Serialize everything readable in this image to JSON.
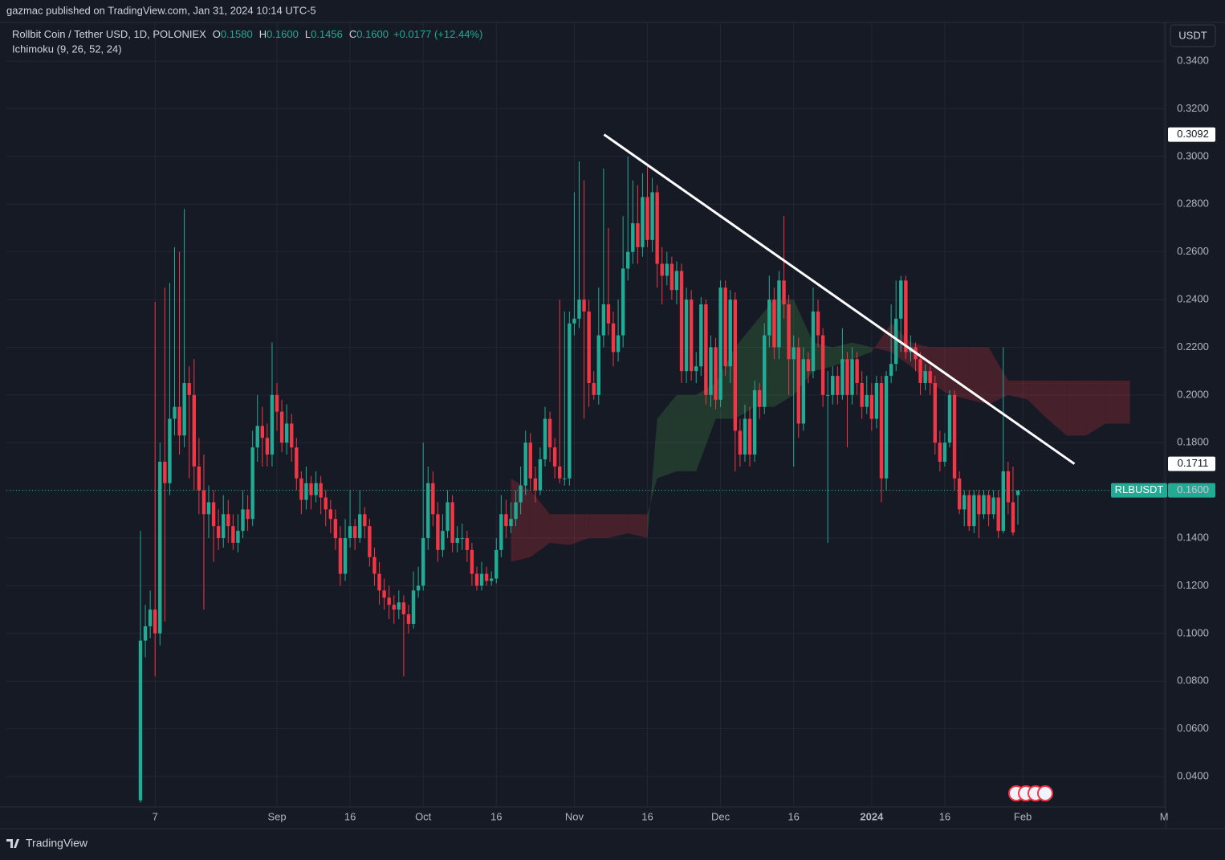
{
  "chart_data": {
    "type": "candlestick",
    "byline": "gazmac published on TradingView.com, Jan 31, 2024 10:14 UTC-5",
    "title": "Rollbit Coin / Tether USD, 1D, POLONIEX",
    "ohlc_legend": [
      {
        "key": "O",
        "text": "0.1580"
      },
      {
        "key": "H",
        "text": "0.1600"
      },
      {
        "key": "L",
        "text": "0.1456"
      },
      {
        "key": "C",
        "text": "0.1600"
      }
    ],
    "change": "+0.0177 (+12.44%)",
    "indicator": "Ichimoku (9, 26, 52, 24)",
    "currency": "USDT",
    "brand": "TradingView",
    "up_color": "#22ab94",
    "down_color": "#f23645",
    "grid": true,
    "xlim": [
      -27.5,
      210.3
    ],
    "ylim": [
      0.0272,
      0.3562
    ],
    "xticks": [
      {
        "value": 3,
        "label": "7"
      },
      {
        "value": 28,
        "label": "Sep"
      },
      {
        "value": 43,
        "label": "16"
      },
      {
        "value": 58,
        "label": "Oct"
      },
      {
        "value": 73,
        "label": "16"
      },
      {
        "value": 89,
        "label": "Nov"
      },
      {
        "value": 104,
        "label": "16"
      },
      {
        "value": 119,
        "label": "Dec"
      },
      {
        "value": 134,
        "label": "16"
      },
      {
        "value": 150,
        "label": "2024"
      },
      {
        "value": 165,
        "label": "16"
      },
      {
        "value": 181,
        "label": "Feb"
      },
      {
        "value": 210,
        "label": "M"
      }
    ],
    "yticks": [
      {
        "value": 0.04,
        "label": "0.0400"
      },
      {
        "value": 0.06,
        "label": "0.0600"
      },
      {
        "value": 0.08,
        "label": "0.0800"
      },
      {
        "value": 0.1,
        "label": "0.1000"
      },
      {
        "value": 0.12,
        "label": "0.1200"
      },
      {
        "value": 0.14,
        "label": "0.1400"
      },
      {
        "value": 0.16,
        "label": "0.1600"
      },
      {
        "value": 0.18,
        "label": "0.1800"
      },
      {
        "value": 0.2,
        "label": "0.2000"
      },
      {
        "value": 0.22,
        "label": "0.2200"
      },
      {
        "value": 0.24,
        "label": "0.2400"
      },
      {
        "value": 0.26,
        "label": "0.2600"
      },
      {
        "value": 0.28,
        "label": "0.2800"
      },
      {
        "value": 0.3,
        "label": "0.3000"
      },
      {
        "value": 0.32,
        "label": "0.3200"
      },
      {
        "value": 0.34,
        "label": "0.3400"
      }
    ],
    "ohlc": [
      [
        0.03,
        0.143,
        0.029,
        0.097
      ],
      [
        0.097,
        0.112,
        0.09,
        0.103
      ],
      [
        0.103,
        0.118,
        0.098,
        0.11
      ],
      [
        0.11,
        0.239,
        0.082,
        0.1
      ],
      [
        0.1,
        0.18,
        0.095,
        0.172
      ],
      [
        0.172,
        0.245,
        0.105,
        0.163
      ],
      [
        0.163,
        0.247,
        0.158,
        0.19
      ],
      [
        0.19,
        0.262,
        0.183,
        0.195
      ],
      [
        0.195,
        0.26,
        0.175,
        0.183
      ],
      [
        0.183,
        0.278,
        0.178,
        0.205
      ],
      [
        0.205,
        0.212,
        0.165,
        0.2
      ],
      [
        0.2,
        0.215,
        0.16,
        0.17
      ],
      [
        0.17,
        0.182,
        0.15,
        0.16
      ],
      [
        0.16,
        0.175,
        0.11,
        0.15
      ],
      [
        0.15,
        0.162,
        0.14,
        0.155
      ],
      [
        0.155,
        0.16,
        0.13,
        0.145
      ],
      [
        0.145,
        0.152,
        0.135,
        0.14
      ],
      [
        0.14,
        0.158,
        0.136,
        0.15
      ],
      [
        0.15,
        0.156,
        0.138,
        0.145
      ],
      [
        0.145,
        0.15,
        0.135,
        0.138
      ],
      [
        0.138,
        0.15,
        0.134,
        0.143
      ],
      [
        0.143,
        0.16,
        0.14,
        0.152
      ],
      [
        0.152,
        0.158,
        0.143,
        0.148
      ],
      [
        0.148,
        0.185,
        0.145,
        0.178
      ],
      [
        0.178,
        0.2,
        0.172,
        0.187
      ],
      [
        0.187,
        0.195,
        0.17,
        0.182
      ],
      [
        0.182,
        0.188,
        0.17,
        0.175
      ],
      [
        0.175,
        0.222,
        0.17,
        0.2
      ],
      [
        0.2,
        0.205,
        0.185,
        0.193
      ],
      [
        0.193,
        0.198,
        0.176,
        0.18
      ],
      [
        0.18,
        0.196,
        0.175,
        0.188
      ],
      [
        0.188,
        0.192,
        0.172,
        0.178
      ],
      [
        0.178,
        0.182,
        0.16,
        0.165
      ],
      [
        0.165,
        0.168,
        0.15,
        0.156
      ],
      [
        0.156,
        0.17,
        0.152,
        0.163
      ],
      [
        0.163,
        0.166,
        0.152,
        0.158
      ],
      [
        0.158,
        0.168,
        0.155,
        0.163
      ],
      [
        0.163,
        0.166,
        0.15,
        0.157
      ],
      [
        0.157,
        0.16,
        0.145,
        0.152
      ],
      [
        0.152,
        0.156,
        0.142,
        0.148
      ],
      [
        0.148,
        0.152,
        0.135,
        0.14
      ],
      [
        0.14,
        0.145,
        0.12,
        0.125
      ],
      [
        0.125,
        0.148,
        0.122,
        0.14
      ],
      [
        0.14,
        0.16,
        0.136,
        0.145
      ],
      [
        0.145,
        0.148,
        0.135,
        0.14
      ],
      [
        0.14,
        0.16,
        0.138,
        0.15
      ],
      [
        0.15,
        0.153,
        0.14,
        0.145
      ],
      [
        0.145,
        0.148,
        0.128,
        0.132
      ],
      [
        0.132,
        0.136,
        0.12,
        0.125
      ],
      [
        0.125,
        0.13,
        0.112,
        0.118
      ],
      [
        0.118,
        0.123,
        0.11,
        0.115
      ],
      [
        0.115,
        0.12,
        0.106,
        0.112
      ],
      [
        0.112,
        0.116,
        0.104,
        0.11
      ],
      [
        0.11,
        0.118,
        0.106,
        0.113
      ],
      [
        0.113,
        0.116,
        0.082,
        0.108
      ],
      [
        0.108,
        0.112,
        0.1,
        0.104
      ],
      [
        0.104,
        0.126,
        0.102,
        0.118
      ],
      [
        0.118,
        0.128,
        0.115,
        0.12
      ],
      [
        0.12,
        0.18,
        0.118,
        0.14
      ],
      [
        0.14,
        0.17,
        0.135,
        0.163
      ],
      [
        0.163,
        0.168,
        0.145,
        0.15
      ],
      [
        0.15,
        0.155,
        0.13,
        0.135
      ],
      [
        0.135,
        0.15,
        0.132,
        0.143
      ],
      [
        0.143,
        0.16,
        0.14,
        0.155
      ],
      [
        0.155,
        0.158,
        0.134,
        0.138
      ],
      [
        0.138,
        0.145,
        0.134,
        0.14
      ],
      [
        0.14,
        0.146,
        0.135,
        0.14
      ],
      [
        0.14,
        0.143,
        0.13,
        0.135
      ],
      [
        0.135,
        0.138,
        0.12,
        0.125
      ],
      [
        0.125,
        0.128,
        0.118,
        0.12
      ],
      [
        0.12,
        0.13,
        0.118,
        0.125
      ],
      [
        0.125,
        0.128,
        0.12,
        0.122
      ],
      [
        0.122,
        0.126,
        0.12,
        0.123
      ],
      [
        0.123,
        0.14,
        0.121,
        0.135
      ],
      [
        0.135,
        0.158,
        0.132,
        0.15
      ],
      [
        0.15,
        0.156,
        0.14,
        0.145
      ],
      [
        0.145,
        0.155,
        0.142,
        0.148
      ],
      [
        0.148,
        0.16,
        0.145,
        0.155
      ],
      [
        0.155,
        0.17,
        0.15,
        0.162
      ],
      [
        0.162,
        0.185,
        0.158,
        0.18
      ],
      [
        0.18,
        0.184,
        0.16,
        0.165
      ],
      [
        0.165,
        0.17,
        0.155,
        0.16
      ],
      [
        0.16,
        0.178,
        0.158,
        0.173
      ],
      [
        0.173,
        0.195,
        0.17,
        0.19
      ],
      [
        0.19,
        0.193,
        0.172,
        0.178
      ],
      [
        0.178,
        0.182,
        0.165,
        0.17
      ],
      [
        0.17,
        0.24,
        0.163,
        0.165
      ],
      [
        0.165,
        0.235,
        0.162,
        0.165
      ],
      [
        0.165,
        0.235,
        0.162,
        0.23
      ],
      [
        0.23,
        0.285,
        0.225,
        0.232
      ],
      [
        0.232,
        0.298,
        0.228,
        0.24
      ],
      [
        0.24,
        0.29,
        0.19,
        0.235
      ],
      [
        0.235,
        0.24,
        0.195,
        0.205
      ],
      [
        0.205,
        0.21,
        0.198,
        0.2
      ],
      [
        0.2,
        0.245,
        0.196,
        0.225
      ],
      [
        0.225,
        0.295,
        0.22,
        0.238
      ],
      [
        0.238,
        0.27,
        0.225,
        0.23
      ],
      [
        0.23,
        0.235,
        0.212,
        0.218
      ],
      [
        0.218,
        0.24,
        0.214,
        0.225
      ],
      [
        0.225,
        0.275,
        0.22,
        0.253
      ],
      [
        0.253,
        0.3,
        0.248,
        0.26
      ],
      [
        0.26,
        0.29,
        0.255,
        0.272
      ],
      [
        0.272,
        0.288,
        0.255,
        0.262
      ],
      [
        0.262,
        0.293,
        0.258,
        0.283
      ],
      [
        0.283,
        0.296,
        0.262,
        0.265
      ],
      [
        0.265,
        0.291,
        0.26,
        0.285
      ],
      [
        0.285,
        0.288,
        0.245,
        0.255
      ],
      [
        0.255,
        0.262,
        0.238,
        0.25
      ],
      [
        0.25,
        0.26,
        0.246,
        0.255
      ],
      [
        0.255,
        0.258,
        0.24,
        0.244
      ],
      [
        0.244,
        0.256,
        0.238,
        0.252
      ],
      [
        0.252,
        0.255,
        0.205,
        0.21
      ],
      [
        0.21,
        0.245,
        0.205,
        0.24
      ],
      [
        0.24,
        0.244,
        0.206,
        0.21
      ],
      [
        0.21,
        0.218,
        0.205,
        0.212
      ],
      [
        0.212,
        0.241,
        0.208,
        0.238
      ],
      [
        0.238,
        0.24,
        0.196,
        0.2
      ],
      [
        0.2,
        0.225,
        0.195,
        0.22
      ],
      [
        0.22,
        0.224,
        0.194,
        0.198
      ],
      [
        0.198,
        0.248,
        0.195,
        0.245
      ],
      [
        0.245,
        0.248,
        0.208,
        0.212
      ],
      [
        0.212,
        0.244,
        0.205,
        0.24
      ],
      [
        0.24,
        0.243,
        0.168,
        0.185
      ],
      [
        0.185,
        0.19,
        0.17,
        0.175
      ],
      [
        0.175,
        0.196,
        0.172,
        0.19
      ],
      [
        0.19,
        0.195,
        0.17,
        0.175
      ],
      [
        0.175,
        0.206,
        0.172,
        0.202
      ],
      [
        0.202,
        0.205,
        0.19,
        0.195
      ],
      [
        0.195,
        0.23,
        0.192,
        0.225
      ],
      [
        0.225,
        0.25,
        0.22,
        0.24
      ],
      [
        0.24,
        0.245,
        0.215,
        0.22
      ],
      [
        0.22,
        0.252,
        0.215,
        0.248
      ],
      [
        0.248,
        0.275,
        0.232,
        0.238
      ],
      [
        0.238,
        0.242,
        0.2,
        0.215
      ],
      [
        0.215,
        0.225,
        0.17,
        0.22
      ],
      [
        0.22,
        0.224,
        0.182,
        0.188
      ],
      [
        0.188,
        0.22,
        0.185,
        0.215
      ],
      [
        0.215,
        0.218,
        0.205,
        0.21
      ],
      [
        0.21,
        0.245,
        0.207,
        0.235
      ],
      [
        0.235,
        0.24,
        0.22,
        0.225
      ],
      [
        0.225,
        0.228,
        0.195,
        0.2
      ],
      [
        0.2,
        0.21,
        0.138,
        0.2
      ],
      [
        0.2,
        0.212,
        0.196,
        0.208
      ],
      [
        0.208,
        0.212,
        0.196,
        0.2
      ],
      [
        0.2,
        0.228,
        0.198,
        0.215
      ],
      [
        0.215,
        0.218,
        0.178,
        0.2
      ],
      [
        0.2,
        0.22,
        0.196,
        0.215
      ],
      [
        0.215,
        0.218,
        0.2,
        0.205
      ],
      [
        0.205,
        0.21,
        0.19,
        0.195
      ],
      [
        0.195,
        0.208,
        0.192,
        0.2
      ],
      [
        0.2,
        0.205,
        0.185,
        0.19
      ],
      [
        0.19,
        0.208,
        0.186,
        0.205
      ],
      [
        0.205,
        0.208,
        0.155,
        0.165
      ],
      [
        0.165,
        0.21,
        0.16,
        0.208
      ],
      [
        0.208,
        0.238,
        0.205,
        0.213
      ],
      [
        0.213,
        0.248,
        0.21,
        0.232
      ],
      [
        0.232,
        0.25,
        0.218,
        0.248
      ],
      [
        0.248,
        0.25,
        0.215,
        0.218
      ],
      [
        0.218,
        0.225,
        0.214,
        0.22
      ],
      [
        0.22,
        0.222,
        0.21,
        0.215
      ],
      [
        0.215,
        0.218,
        0.2,
        0.205
      ],
      [
        0.205,
        0.213,
        0.202,
        0.21
      ],
      [
        0.21,
        0.212,
        0.2,
        0.205
      ],
      [
        0.205,
        0.208,
        0.175,
        0.18
      ],
      [
        0.18,
        0.185,
        0.168,
        0.172
      ],
      [
        0.172,
        0.184,
        0.17,
        0.18
      ],
      [
        0.18,
        0.202,
        0.178,
        0.2
      ],
      [
        0.2,
        0.202,
        0.16,
        0.165
      ],
      [
        0.165,
        0.168,
        0.15,
        0.152
      ],
      [
        0.152,
        0.16,
        0.145,
        0.158
      ],
      [
        0.158,
        0.16,
        0.143,
        0.145
      ],
      [
        0.145,
        0.16,
        0.142,
        0.158
      ],
      [
        0.158,
        0.16,
        0.14,
        0.15
      ],
      [
        0.15,
        0.16,
        0.148,
        0.158
      ],
      [
        0.158,
        0.16,
        0.145,
        0.15
      ],
      [
        0.15,
        0.16,
        0.148,
        0.157
      ],
      [
        0.157,
        0.16,
        0.14,
        0.143
      ],
      [
        0.143,
        0.22,
        0.142,
        0.168
      ],
      [
        0.168,
        0.172,
        0.15,
        0.155
      ],
      [
        0.155,
        0.17,
        0.141,
        0.1423
      ],
      [
        0.158,
        0.16,
        0.1456,
        0.16
      ]
    ],
    "cloud": {
      "up_color": "rgba(76,175,80,0.22)",
      "down_color": "rgba(242,54,69,0.22)",
      "x": [
        76,
        80,
        84,
        88,
        92,
        96,
        100,
        104,
        106,
        110,
        114,
        118,
        122,
        126,
        130,
        134,
        138,
        142,
        146,
        150,
        154,
        158,
        162,
        166,
        170,
        174,
        178,
        182,
        186,
        190,
        194,
        198,
        203
      ],
      "span_a": [
        0.13,
        0.132,
        0.138,
        0.137,
        0.14,
        0.14,
        0.142,
        0.14,
        0.19,
        0.2,
        0.2,
        0.205,
        0.22,
        0.23,
        0.24,
        0.24,
        0.222,
        0.22,
        0.222,
        0.22,
        0.218,
        0.212,
        0.205,
        0.2,
        0.198,
        0.196,
        0.2,
        0.198,
        0.19,
        0.183,
        0.183,
        0.188,
        0.188
      ],
      "span_b": [
        0.165,
        0.16,
        0.15,
        0.15,
        0.15,
        0.15,
        0.15,
        0.15,
        0.165,
        0.168,
        0.168,
        0.19,
        0.19,
        0.195,
        0.195,
        0.2,
        0.21,
        0.212,
        0.215,
        0.218,
        0.23,
        0.222,
        0.22,
        0.22,
        0.22,
        0.22,
        0.206,
        0.206,
        0.206,
        0.206,
        0.206,
        0.206,
        0.206
      ]
    },
    "trendline": {
      "x": [
        95.1,
        191.6
      ],
      "values": [
        0.3092,
        0.1711
      ],
      "value_labels": [
        "0.3092",
        "0.1711"
      ]
    },
    "last_price": {
      "symbol": "RLBUSDT",
      "value": 0.16,
      "label": "0.1600"
    }
  }
}
